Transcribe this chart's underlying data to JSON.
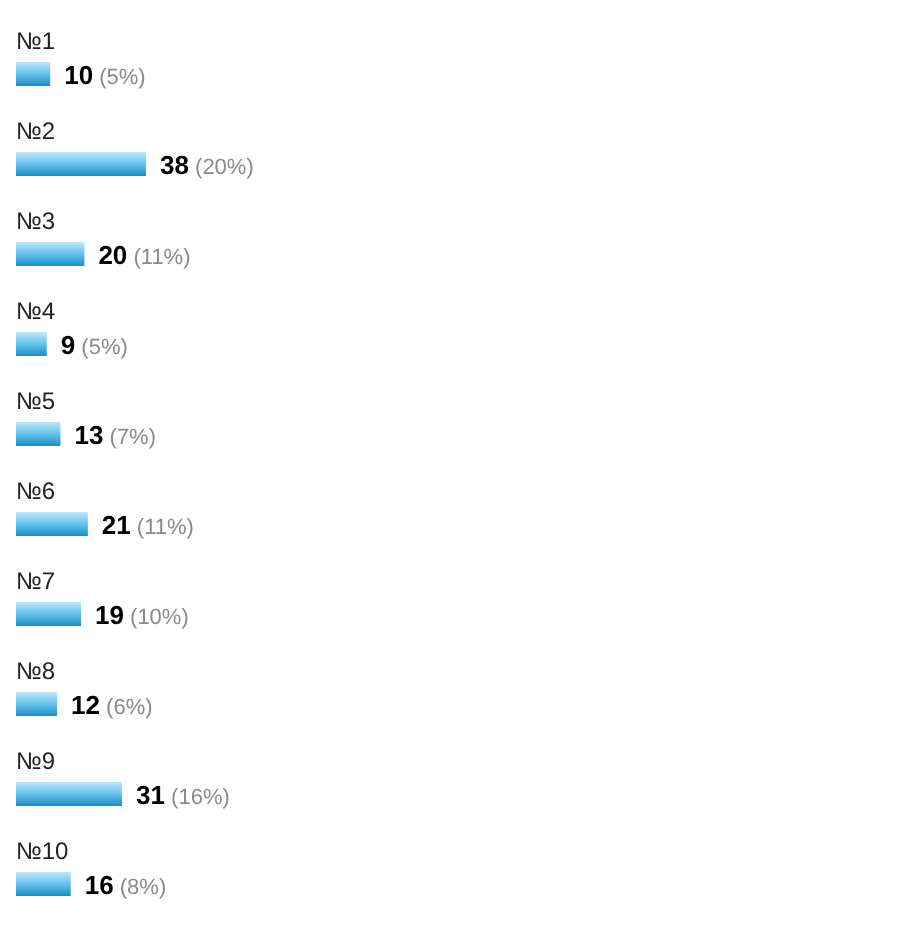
{
  "chart_data": {
    "type": "bar",
    "orientation": "horizontal",
    "categories": [
      "№1",
      "№2",
      "№3",
      "№4",
      "№5",
      "№6",
      "№7",
      "№8",
      "№9",
      "№10"
    ],
    "values": [
      10,
      38,
      20,
      9,
      13,
      21,
      19,
      12,
      31,
      16
    ],
    "color": "#1ea8e8",
    "value_labels": [
      "10 (5%)",
      "38 (20%)",
      "20 (11%)",
      "9 (5%)",
      "13 (7%)",
      "21 (11%)",
      "19 (10%)",
      "12 (6%)",
      "31 (16%)",
      "16 (8%)"
    ]
  }
}
